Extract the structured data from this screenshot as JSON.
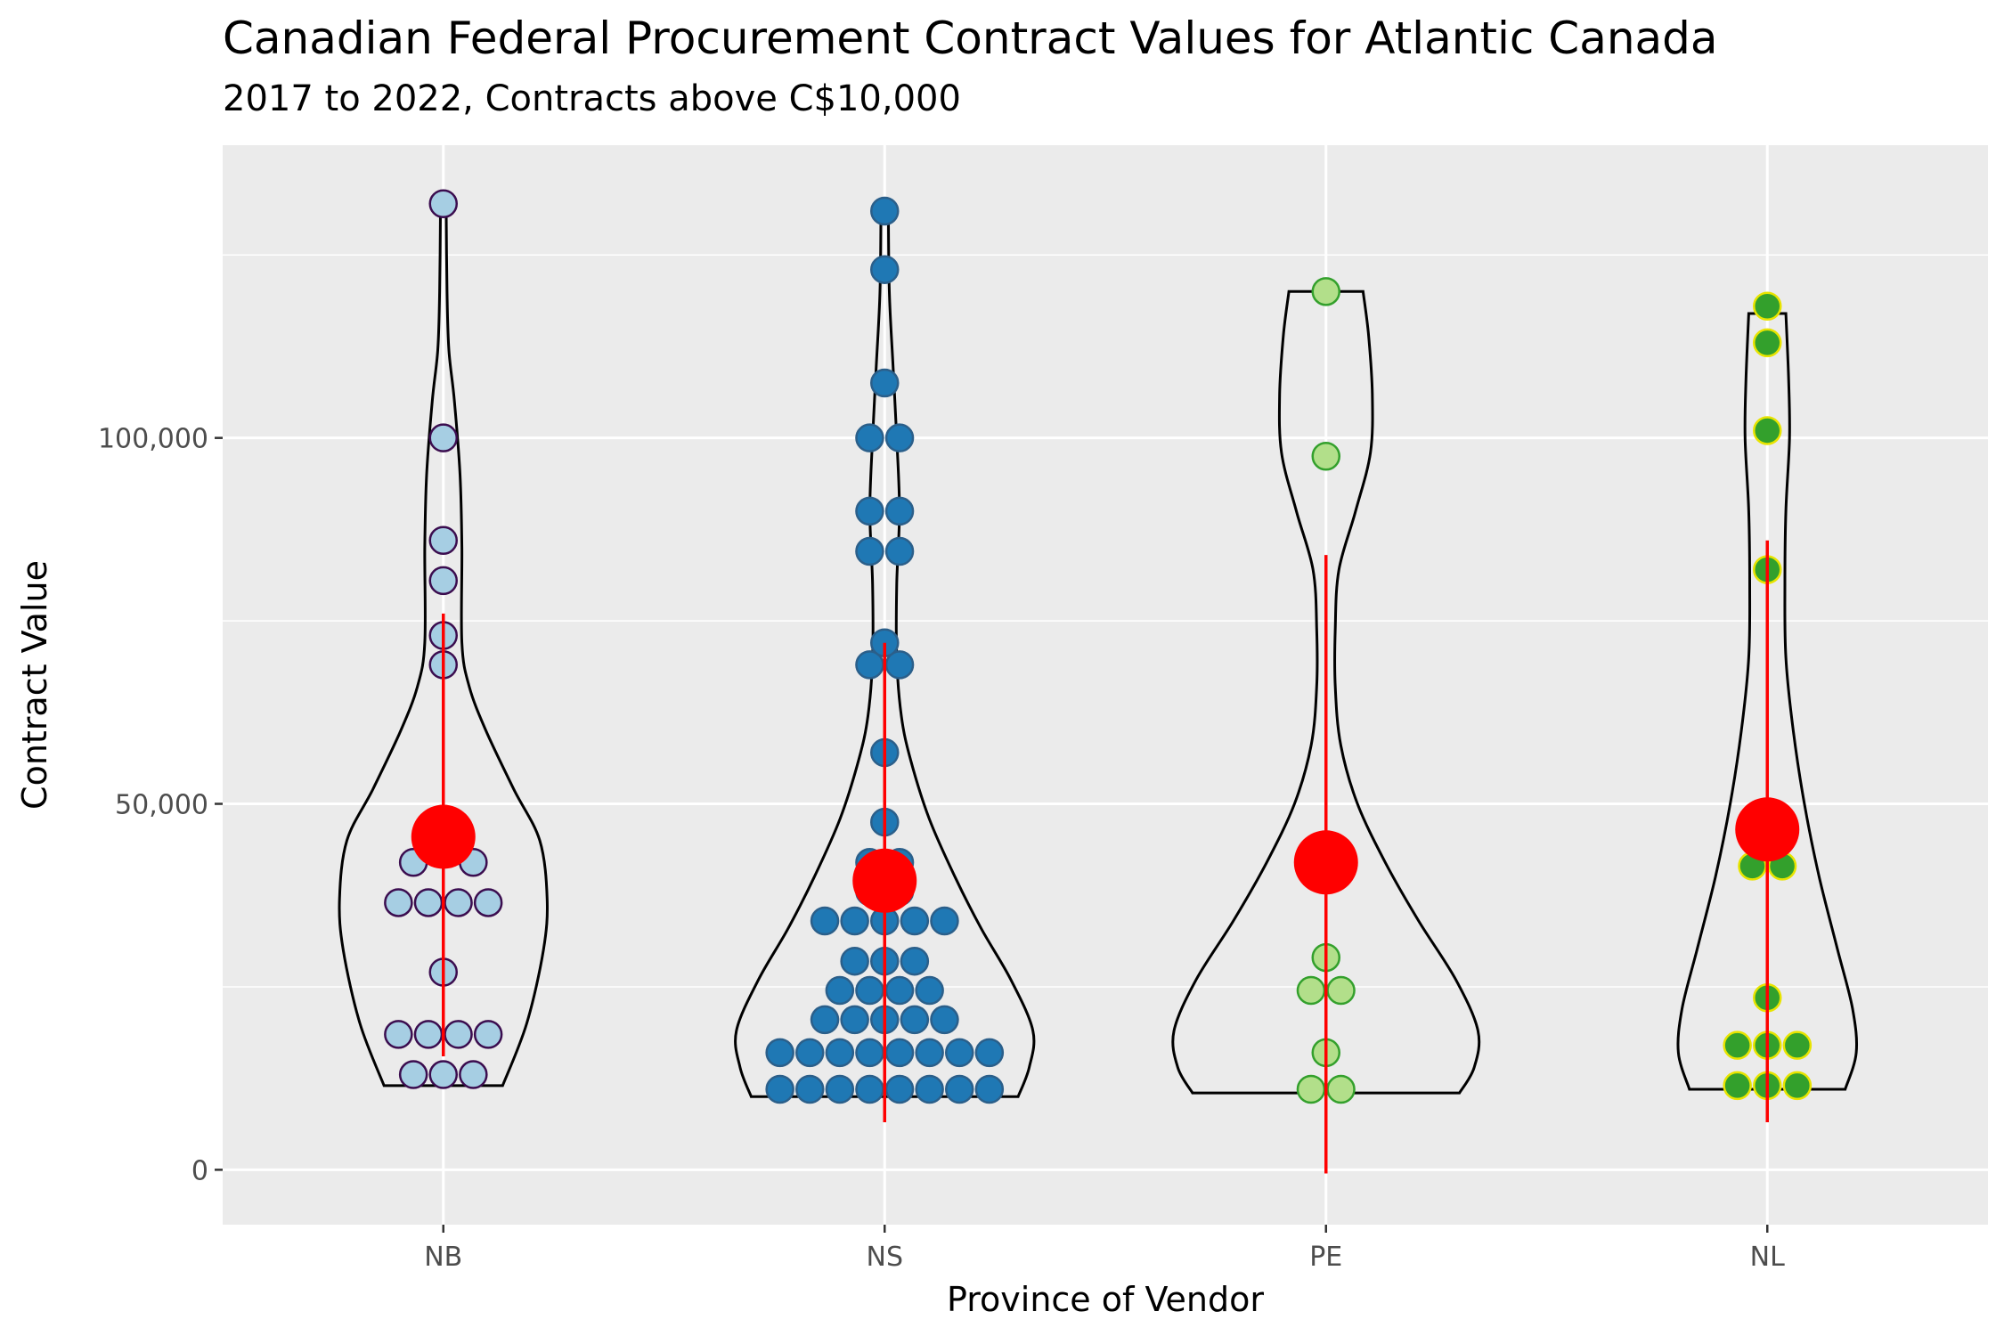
{
  "chart_data": {
    "type": "violin",
    "title": "Canadian Federal Procurement Contract Values for Atlantic Canada",
    "subtitle": "2017 to 2022, Contracts above C$10,000",
    "xlabel": "Province of Vendor",
    "ylabel": "Contract Value",
    "ylim": [
      -7500,
      140000
    ],
    "yticks": [
      0,
      50000,
      100000
    ],
    "ytick_labels": [
      "0",
      "50,000",
      "100,000"
    ],
    "categories": [
      "NB",
      "NS",
      "PE",
      "NL"
    ],
    "groups": [
      {
        "name": "NB",
        "fill": "#a6cee3",
        "stroke": "#3b0d4f",
        "min": 11500,
        "max": 132000,
        "mean": 45500,
        "sd_low": 15500,
        "sd_high": 76000,
        "density": [
          [
            11500,
            0.32
          ],
          [
            20000,
            0.45
          ],
          [
            30000,
            0.54
          ],
          [
            37000,
            0.56
          ],
          [
            45000,
            0.52
          ],
          [
            52000,
            0.38
          ],
          [
            60000,
            0.23
          ],
          [
            66000,
            0.14
          ],
          [
            72000,
            0.1
          ],
          [
            85000,
            0.1
          ],
          [
            95000,
            0.09
          ],
          [
            105000,
            0.06
          ],
          [
            112000,
            0.03
          ],
          [
            120000,
            0.02
          ],
          [
            132000,
            0.015
          ]
        ],
        "points": [
          [
            13000,
            -2
          ],
          [
            13000,
            0
          ],
          [
            13000,
            2
          ],
          [
            18500,
            -3
          ],
          [
            18500,
            -1
          ],
          [
            18500,
            1
          ],
          [
            18500,
            3
          ],
          [
            27000,
            0
          ],
          [
            36500,
            -3
          ],
          [
            36500,
            -1
          ],
          [
            36500,
            1
          ],
          [
            36500,
            3
          ],
          [
            42000,
            -2
          ],
          [
            42000,
            2
          ],
          [
            45500,
            -1
          ],
          [
            45500,
            1
          ],
          [
            69000,
            0
          ],
          [
            73000,
            0
          ],
          [
            80500,
            0
          ],
          [
            86000,
            0
          ],
          [
            100000,
            0
          ],
          [
            132000,
            0
          ]
        ]
      },
      {
        "name": "NS",
        "fill": "#1f78b4",
        "stroke": "#2b5f8a",
        "min": 10000,
        "max": 131000,
        "mean": 39500,
        "sd_low": 6500,
        "sd_high": 72000,
        "density": [
          [
            10000,
            0.72
          ],
          [
            14000,
            0.78
          ],
          [
            19000,
            0.8
          ],
          [
            26000,
            0.68
          ],
          [
            33000,
            0.52
          ],
          [
            40000,
            0.38
          ],
          [
            48000,
            0.24
          ],
          [
            56000,
            0.14
          ],
          [
            62000,
            0.09
          ],
          [
            70000,
            0.065
          ],
          [
            80000,
            0.065
          ],
          [
            90000,
            0.08
          ],
          [
            100000,
            0.065
          ],
          [
            110000,
            0.045
          ],
          [
            120000,
            0.025
          ],
          [
            131000,
            0.02
          ]
        ],
        "points": [
          [
            11000,
            -7
          ],
          [
            11000,
            -5
          ],
          [
            11000,
            -3
          ],
          [
            11000,
            -1
          ],
          [
            11000,
            1
          ],
          [
            11000,
            3
          ],
          [
            11000,
            5
          ],
          [
            11000,
            7
          ],
          [
            16000,
            -7
          ],
          [
            16000,
            -5
          ],
          [
            16000,
            -3
          ],
          [
            16000,
            -1
          ],
          [
            16000,
            1
          ],
          [
            16000,
            3
          ],
          [
            16000,
            5
          ],
          [
            16000,
            7
          ],
          [
            20500,
            -4
          ],
          [
            20500,
            -2
          ],
          [
            20500,
            0
          ],
          [
            20500,
            2
          ],
          [
            20500,
            4
          ],
          [
            24500,
            -3
          ],
          [
            24500,
            -1
          ],
          [
            24500,
            1
          ],
          [
            24500,
            3
          ],
          [
            28500,
            -2
          ],
          [
            28500,
            0
          ],
          [
            28500,
            2
          ],
          [
            34000,
            -4
          ],
          [
            34000,
            -2
          ],
          [
            34000,
            0
          ],
          [
            34000,
            2
          ],
          [
            34000,
            4
          ],
          [
            38000,
            -1
          ],
          [
            38000,
            1
          ],
          [
            42000,
            -1
          ],
          [
            42000,
            1
          ],
          [
            47500,
            0
          ],
          [
            57000,
            0
          ],
          [
            69000,
            -1
          ],
          [
            69000,
            1
          ],
          [
            72000,
            0
          ],
          [
            84500,
            -1
          ],
          [
            84500,
            1
          ],
          [
            90000,
            -1
          ],
          [
            90000,
            1
          ],
          [
            100000,
            -1
          ],
          [
            100000,
            1
          ],
          [
            107500,
            0
          ],
          [
            123000,
            0
          ],
          [
            131000,
            0
          ]
        ]
      },
      {
        "name": "PE",
        "fill": "#b2df8a",
        "stroke": "#33a02c",
        "min": 10500,
        "max": 120000,
        "mean": 42000,
        "sd_low": -500,
        "sd_high": 84000,
        "density": [
          [
            10500,
            0.72
          ],
          [
            14000,
            0.8
          ],
          [
            19000,
            0.82
          ],
          [
            26000,
            0.7
          ],
          [
            34000,
            0.5
          ],
          [
            42000,
            0.32
          ],
          [
            50000,
            0.17
          ],
          [
            58000,
            0.08
          ],
          [
            66000,
            0.05
          ],
          [
            74000,
            0.05
          ],
          [
            82000,
            0.07
          ],
          [
            90000,
            0.16
          ],
          [
            98000,
            0.24
          ],
          [
            106000,
            0.25
          ],
          [
            114000,
            0.23
          ],
          [
            120000,
            0.2
          ]
        ],
        "points": [
          [
            11000,
            -1
          ],
          [
            11000,
            1
          ],
          [
            16000,
            0
          ],
          [
            24500,
            -1
          ],
          [
            24500,
            1
          ],
          [
            29000,
            0
          ],
          [
            97500,
            0
          ],
          [
            120000,
            0
          ]
        ]
      },
      {
        "name": "NL",
        "fill": "#33a02c",
        "stroke": "#e8e400",
        "min": 11000,
        "max": 117000,
        "mean": 46500,
        "sd_low": 6500,
        "sd_high": 86000,
        "density": [
          [
            11000,
            0.42
          ],
          [
            16000,
            0.48
          ],
          [
            22000,
            0.46
          ],
          [
            30000,
            0.38
          ],
          [
            40000,
            0.28
          ],
          [
            50000,
            0.2
          ],
          [
            60000,
            0.14
          ],
          [
            70000,
            0.1
          ],
          [
            80000,
            0.095
          ],
          [
            90000,
            0.1
          ],
          [
            100000,
            0.12
          ],
          [
            108000,
            0.115
          ],
          [
            117000,
            0.1
          ]
        ],
        "points": [
          [
            11500,
            -2
          ],
          [
            11500,
            0
          ],
          [
            11500,
            2
          ],
          [
            17000,
            -2
          ],
          [
            17000,
            0
          ],
          [
            17000,
            2
          ],
          [
            23500,
            0
          ],
          [
            41500,
            -1
          ],
          [
            41500,
            1
          ],
          [
            82000,
            0
          ],
          [
            101000,
            0
          ],
          [
            113000,
            0
          ],
          [
            118000,
            0
          ]
        ]
      }
    ]
  }
}
